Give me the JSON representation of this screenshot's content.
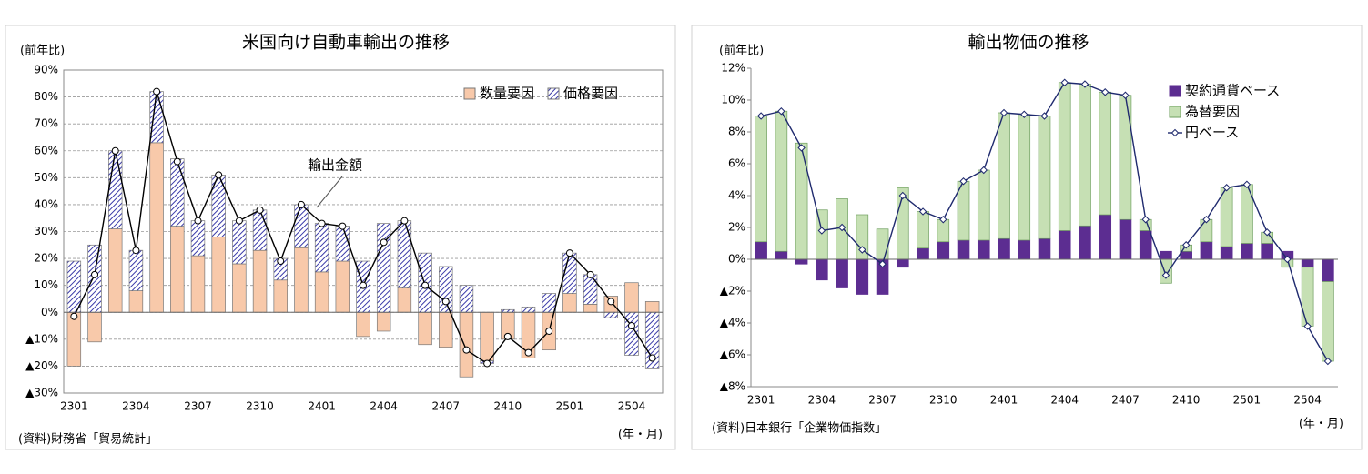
{
  "chart_data": [
    {
      "type": "bar",
      "stacked": true,
      "title": "米国向け自動車輸出の推移",
      "y_label": "(前年比)",
      "x_label": "(年・月)",
      "source": "(資料)財務省「貿易統計」",
      "annotation": "輸出金額",
      "grid": true,
      "legend": "upper right",
      "legend_layout": "horizontal",
      "categories": [
        "2301",
        null,
        null,
        "2304",
        null,
        null,
        "2307",
        null,
        null,
        "2310",
        null,
        null,
        "2401",
        null,
        null,
        "2404",
        null,
        null,
        "2407",
        null,
        null,
        "2410",
        null,
        null,
        "2501",
        null,
        null,
        "2504",
        null
      ],
      "ylim": [
        -30,
        90
      ],
      "yticks": [
        {
          "value": -30,
          "label": "▲30%"
        },
        {
          "value": -20,
          "label": "▲20%"
        },
        {
          "value": -10,
          "label": "▲10%"
        },
        {
          "value": 0,
          "label": "0%"
        },
        {
          "value": 10,
          "label": "10%"
        },
        {
          "value": 20,
          "label": "20%"
        },
        {
          "value": 30,
          "label": "30%"
        },
        {
          "value": 40,
          "label": "40%"
        },
        {
          "value": 50,
          "label": "50%"
        },
        {
          "value": 60,
          "label": "60%"
        },
        {
          "value": 70,
          "label": "70%"
        },
        {
          "value": 80,
          "label": "80%"
        },
        {
          "value": 90,
          "label": "90%"
        }
      ],
      "series": [
        {
          "name": "数量要因",
          "type": "bar",
          "color": "#f8c9aa",
          "values": [
            -20,
            -11,
            31,
            8,
            63,
            32,
            21,
            28,
            18,
            23,
            12,
            24,
            15,
            19,
            -9,
            -7,
            9,
            -12,
            -13,
            -24,
            -18,
            -10,
            -17,
            -14,
            7,
            3,
            6,
            11,
            4
          ]
        },
        {
          "name": "価格要因",
          "type": "bar",
          "color": "#3a3aa8",
          "pattern": "hatch",
          "values": [
            19,
            25,
            29,
            15,
            19,
            25,
            13,
            23,
            16,
            15,
            8,
            16,
            18,
            13,
            19,
            33,
            25,
            22,
            17,
            10,
            -1,
            1,
            2,
            7,
            15,
            11,
            -2,
            -16,
            -21
          ]
        },
        {
          "name": "輸出金額",
          "type": "line",
          "color": "#000000",
          "marker": "circle",
          "in_legend": false,
          "values": [
            -1.5,
            14,
            60,
            23,
            82,
            56,
            34,
            51,
            34,
            38,
            19,
            40,
            33,
            32,
            10,
            26,
            34,
            10,
            4,
            -14,
            -19,
            -9,
            -15,
            -7,
            22,
            14,
            4,
            -5,
            -17
          ]
        }
      ]
    },
    {
      "type": "bar",
      "stacked": true,
      "title": "輸出物価の推移",
      "y_label": "(前年比)",
      "x_label": "(年・月)",
      "source": "(資料)日本銀行「企業物価指数」",
      "grid": false,
      "legend": "upper right",
      "legend_layout": "vertical",
      "categories": [
        "2301",
        null,
        null,
        "2304",
        null,
        null,
        "2307",
        null,
        null,
        "2310",
        null,
        null,
        "2401",
        null,
        null,
        "2404",
        null,
        null,
        "2407",
        null,
        null,
        "2410",
        null,
        null,
        "2501",
        null,
        null,
        "2504",
        null
      ],
      "ylim": [
        -8,
        12
      ],
      "yticks": [
        {
          "value": -8,
          "label": "▲8%"
        },
        {
          "value": -6,
          "label": "▲6%"
        },
        {
          "value": -4,
          "label": "▲4%"
        },
        {
          "value": -2,
          "label": "▲2%"
        },
        {
          "value": 0,
          "label": "0%"
        },
        {
          "value": 2,
          "label": "2%"
        },
        {
          "value": 4,
          "label": "4%"
        },
        {
          "value": 6,
          "label": "6%"
        },
        {
          "value": 8,
          "label": "8%"
        },
        {
          "value": 10,
          "label": "10%"
        },
        {
          "value": 12,
          "label": "12%"
        }
      ],
      "series": [
        {
          "name": "契約通貨ベース",
          "type": "bar",
          "color": "#5c2d91",
          "values": [
            1.1,
            0.5,
            -0.3,
            -1.3,
            -1.8,
            -2.2,
            -2.2,
            -0.5,
            0.7,
            1.1,
            1.2,
            1.2,
            1.3,
            1.2,
            1.3,
            1.8,
            2.1,
            2.8,
            2.5,
            1.8,
            0.5,
            0.5,
            1.1,
            0.8,
            1.0,
            1.0,
            0.5,
            -0.5,
            -1.4
          ]
        },
        {
          "name": "為替要因",
          "type": "bar",
          "color": "#c6e0b4",
          "values": [
            7.9,
            8.8,
            7.3,
            3.1,
            3.8,
            2.8,
            1.9,
            4.5,
            2.3,
            1.4,
            3.7,
            4.4,
            7.9,
            7.9,
            7.7,
            9.3,
            8.9,
            7.7,
            7.8,
            0.7,
            -1.5,
            0.4,
            1.4,
            3.7,
            3.7,
            0.7,
            -0.5,
            -3.7,
            -5.0
          ]
        },
        {
          "name": "円ベース",
          "type": "line",
          "color": "#1f2a6e",
          "marker": "diamond",
          "values": [
            9.0,
            9.3,
            7.0,
            1.8,
            2.0,
            0.6,
            -0.3,
            4.0,
            3.0,
            2.5,
            4.9,
            5.6,
            9.2,
            9.1,
            9.0,
            11.1,
            11.0,
            10.5,
            10.3,
            2.5,
            -1.0,
            0.9,
            2.5,
            4.5,
            4.7,
            1.7,
            0.0,
            -4.2,
            -6.4
          ]
        }
      ]
    }
  ]
}
